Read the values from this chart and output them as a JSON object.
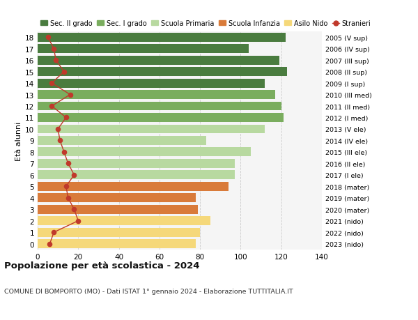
{
  "ages": [
    18,
    17,
    16,
    15,
    14,
    13,
    12,
    11,
    10,
    9,
    8,
    7,
    6,
    5,
    4,
    3,
    2,
    1,
    0
  ],
  "bar_values": [
    122,
    104,
    119,
    123,
    112,
    117,
    120,
    121,
    112,
    83,
    105,
    97,
    97,
    94,
    78,
    79,
    85,
    80,
    78
  ],
  "stranieri": [
    5,
    8,
    9,
    13,
    7,
    16,
    7,
    14,
    10,
    11,
    13,
    15,
    18,
    14,
    15,
    18,
    20,
    8,
    6
  ],
  "right_labels": [
    "2005 (V sup)",
    "2006 (IV sup)",
    "2007 (III sup)",
    "2008 (II sup)",
    "2009 (I sup)",
    "2010 (III med)",
    "2011 (II med)",
    "2012 (I med)",
    "2013 (V ele)",
    "2014 (IV ele)",
    "2015 (III ele)",
    "2016 (II ele)",
    "2017 (I ele)",
    "2018 (mater)",
    "2019 (mater)",
    "2020 (mater)",
    "2021 (nido)",
    "2022 (nido)",
    "2023 (nido)"
  ],
  "bar_colors": [
    "#4a7c3f",
    "#4a7c3f",
    "#4a7c3f",
    "#4a7c3f",
    "#4a7c3f",
    "#7aad5e",
    "#7aad5e",
    "#7aad5e",
    "#b8d9a0",
    "#b8d9a0",
    "#b8d9a0",
    "#b8d9a0",
    "#b8d9a0",
    "#d97b3a",
    "#d97b3a",
    "#d97b3a",
    "#f5d87a",
    "#f5d87a",
    "#f5d87a"
  ],
  "legend_labels": [
    "Sec. II grado",
    "Sec. I grado",
    "Scuola Primaria",
    "Scuola Infanzia",
    "Asilo Nido",
    "Stranieri"
  ],
  "legend_colors": [
    "#4a7c3f",
    "#7aad5e",
    "#b8d9a0",
    "#d97b3a",
    "#f5d87a",
    "#c0392b"
  ],
  "stranieri_color": "#c0392b",
  "title": "Popolazione per età scolastica - 2024",
  "subtitle": "COMUNE DI BOMPORTO (MO) - Dati ISTAT 1° gennaio 2024 - Elaborazione TUTTITALIA.IT",
  "ylabel_left": "Età alunni",
  "xlim": [
    0,
    140
  ],
  "bg_color": "#ffffff"
}
